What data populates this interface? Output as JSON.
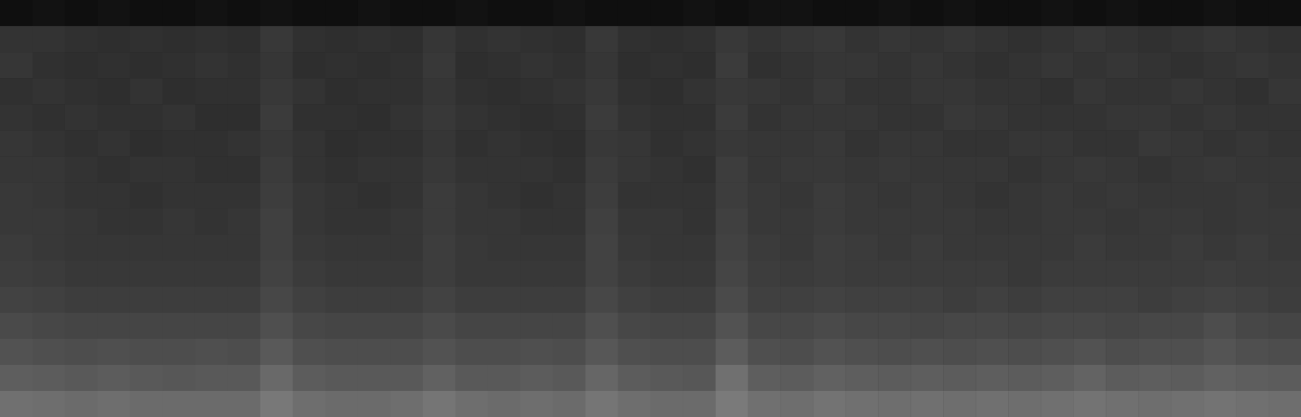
{
  "chart_data": {
    "type": "heatmap",
    "tick_labels": false,
    "zlim": [
      0,
      100
    ],
    "cells": [
      [
        6,
        7,
        6,
        7,
        6,
        6,
        7,
        6,
        7,
        6,
        6,
        7,
        6,
        6,
        7,
        6,
        6,
        7,
        6,
        6,
        6,
        7,
        6,
        7,
        7,
        6,
        6,
        7,
        6,
        7,
        6,
        6,
        7,
        6,
        7,
        6,
        6,
        7,
        6,
        6
      ],
      [
        20,
        20,
        19,
        18,
        19,
        18,
        19,
        18,
        22,
        19,
        18,
        19,
        18,
        21,
        19,
        20,
        19,
        18,
        22,
        19,
        18,
        19,
        22,
        20,
        21,
        22,
        20,
        21,
        20,
        21,
        20,
        19,
        20,
        21,
        20,
        19,
        20,
        21,
        20,
        19
      ],
      [
        21,
        19,
        18,
        19,
        18,
        19,
        20,
        19,
        21,
        18,
        19,
        18,
        19,
        22,
        18,
        19,
        20,
        19,
        21,
        18,
        19,
        18,
        23,
        19,
        20,
        21,
        21,
        20,
        21,
        20,
        19,
        20,
        21,
        20,
        21,
        20,
        19,
        20,
        21,
        20
      ],
      [
        19,
        20,
        19,
        18,
        20,
        18,
        19,
        19,
        22,
        20,
        18,
        19,
        19,
        21,
        19,
        18,
        19,
        20,
        22,
        19,
        18,
        20,
        22,
        21,
        20,
        22,
        20,
        20,
        21,
        21,
        20,
        20,
        19,
        21,
        20,
        20,
        21,
        20,
        19,
        21
      ],
      [
        20,
        19,
        20,
        19,
        19,
        20,
        18,
        18,
        23,
        19,
        19,
        18,
        20,
        22,
        20,
        19,
        18,
        19,
        23,
        20,
        19,
        19,
        23,
        20,
        21,
        21,
        21,
        20,
        20,
        22,
        21,
        20,
        20,
        20,
        21,
        21,
        20,
        21,
        20,
        20
      ],
      [
        21,
        20,
        19,
        20,
        18,
        19,
        19,
        20,
        22,
        20,
        18,
        19,
        19,
        21,
        19,
        20,
        19,
        18,
        22,
        21,
        19,
        20,
        22,
        21,
        21,
        22,
        20,
        21,
        21,
        20,
        20,
        21,
        21,
        20,
        20,
        22,
        21,
        20,
        21,
        20
      ],
      [
        21,
        21,
        20,
        19,
        20,
        20,
        19,
        19,
        23,
        20,
        19,
        20,
        20,
        22,
        20,
        20,
        20,
        19,
        23,
        21,
        20,
        19,
        24,
        21,
        22,
        22,
        21,
        22,
        21,
        21,
        21,
        20,
        21,
        22,
        21,
        20,
        21,
        22,
        21,
        21
      ],
      [
        22,
        21,
        20,
        20,
        19,
        20,
        20,
        20,
        24,
        21,
        20,
        19,
        20,
        23,
        21,
        20,
        19,
        20,
        24,
        20,
        20,
        20,
        24,
        22,
        21,
        23,
        22,
        21,
        22,
        21,
        20,
        21,
        22,
        21,
        22,
        21,
        21,
        21,
        22,
        21
      ],
      [
        22,
        22,
        21,
        20,
        20,
        21,
        20,
        21,
        25,
        21,
        20,
        20,
        21,
        23,
        21,
        21,
        20,
        20,
        25,
        21,
        21,
        20,
        25,
        22,
        22,
        23,
        22,
        22,
        22,
        22,
        21,
        21,
        22,
        22,
        21,
        22,
        22,
        21,
        22,
        22
      ],
      [
        23,
        22,
        21,
        21,
        21,
        21,
        21,
        21,
        25,
        22,
        21,
        21,
        21,
        24,
        22,
        21,
        21,
        21,
        26,
        22,
        21,
        21,
        26,
        23,
        22,
        24,
        23,
        22,
        23,
        22,
        22,
        22,
        22,
        23,
        22,
        22,
        23,
        22,
        23,
        22
      ],
      [
        24,
        23,
        22,
        22,
        22,
        22,
        22,
        22,
        26,
        23,
        22,
        22,
        22,
        24,
        22,
        22,
        22,
        22,
        26,
        23,
        22,
        22,
        27,
        24,
        23,
        24,
        23,
        23,
        23,
        23,
        23,
        22,
        23,
        23,
        23,
        23,
        23,
        24,
        23,
        23
      ],
      [
        26,
        25,
        24,
        24,
        24,
        24,
        24,
        24,
        28,
        25,
        24,
        24,
        24,
        26,
        24,
        24,
        24,
        24,
        28,
        25,
        24,
        24,
        29,
        25,
        25,
        26,
        25,
        25,
        25,
        24,
        25,
        24,
        25,
        25,
        25,
        24,
        25,
        26,
        25,
        24
      ],
      [
        29,
        28,
        27,
        27,
        27,
        27,
        27,
        27,
        31,
        28,
        27,
        27,
        27,
        29,
        27,
        27,
        27,
        27,
        31,
        28,
        27,
        27,
        32,
        28,
        28,
        29,
        28,
        28,
        27,
        28,
        28,
        27,
        28,
        28,
        27,
        28,
        28,
        30,
        28,
        27
      ],
      [
        32,
        31,
        30,
        31,
        30,
        30,
        31,
        30,
        35,
        31,
        30,
        30,
        30,
        32,
        30,
        30,
        31,
        30,
        34,
        31,
        30,
        30,
        36,
        31,
        30,
        32,
        31,
        30,
        31,
        30,
        31,
        30,
        31,
        32,
        30,
        31,
        31,
        33,
        31,
        30
      ],
      [
        37,
        36,
        35,
        36,
        35,
        34,
        35,
        35,
        41,
        36,
        35,
        35,
        35,
        38,
        35,
        35,
        36,
        35,
        40,
        36,
        35,
        34,
        44,
        37,
        36,
        38,
        37,
        36,
        37,
        36,
        37,
        36,
        37,
        39,
        36,
        37,
        36,
        38,
        37,
        36
      ],
      [
        44,
        43,
        42,
        43,
        42,
        42,
        42,
        42,
        47,
        43,
        42,
        42,
        43,
        46,
        43,
        42,
        43,
        42,
        46,
        43,
        42,
        42,
        48,
        44,
        43,
        45,
        44,
        43,
        44,
        43,
        44,
        43,
        44,
        45,
        44,
        43,
        44,
        45,
        44,
        43
      ]
    ]
  }
}
